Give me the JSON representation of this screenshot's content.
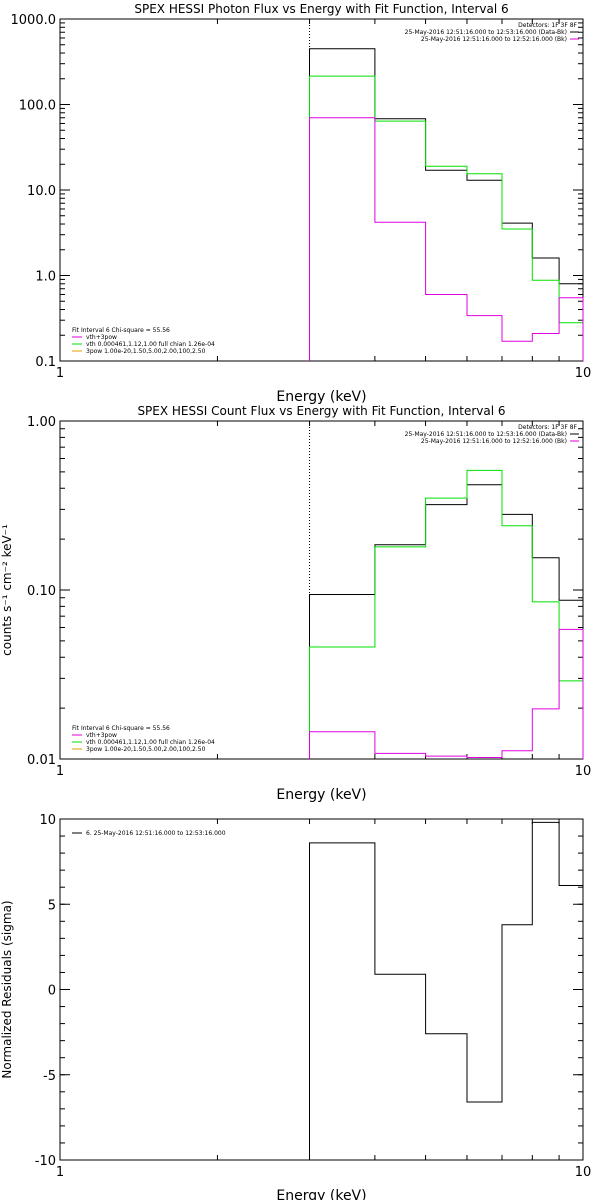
{
  "chart_data": [
    {
      "type": "line",
      "title": "SPEX HESSI Photon Flux vs Energy with Fit Function, Interval 6",
      "xlabel": "Energy (keV)",
      "ylabel": "",
      "xscale": "log",
      "yscale": "log",
      "xlim": [
        1,
        10
      ],
      "ylim": [
        0.1,
        1000
      ],
      "x_tick_labels": [
        "1",
        "10"
      ],
      "y_ticks": [
        0.1,
        1,
        10,
        100,
        1000
      ],
      "y_tick_labels": [
        "0.1",
        "1.0",
        "10.0",
        "100.0",
        "1000.0"
      ],
      "vline": 3,
      "edges": [
        3,
        4,
        5,
        6,
        7,
        8,
        9,
        10
      ],
      "series": [
        {
          "color": "#000000",
          "values": [
            450,
            68,
            17,
            13,
            4.1,
            1.6,
            0.8
          ]
        },
        {
          "color": "#00e000",
          "values": [
            215,
            64,
            19,
            15.5,
            3.5,
            0.88,
            0.28
          ]
        },
        {
          "color": "#e000e0",
          "values": [
            70,
            4.2,
            0.6,
            0.34,
            0.17,
            0.21,
            0.55
          ]
        }
      ],
      "header_right": [
        {
          "text": "Detectors: 1F 3F 8F",
          "line": false
        },
        {
          "text": "25-May-2016 12:51:16.000 to 12:53:16.000 (Data-Bk)",
          "line": true,
          "color": "#000000"
        },
        {
          "text": "25-May-2016 12:51:16.000 to 12:52:16.000 (Bk)",
          "line": true,
          "color": "#e000e0"
        }
      ],
      "legend_left": [
        {
          "text": "Fit Interval  6   Chi-square = 55.56",
          "line": false
        },
        {
          "text": "vth+3pow",
          "line": true,
          "color": "#e000e0"
        },
        {
          "text": "vth 0.000461,1.12,1.00   full chian 1.26e-04",
          "line": true,
          "color": "#00e000"
        },
        {
          "text": "3pow 1.00e-20,1.50,5.00,2.00,100,2.50",
          "line": true,
          "color": "#e0a000"
        }
      ]
    },
    {
      "type": "line",
      "title": "SPEX HESSI Count Flux vs Energy with Fit Function, Interval 6",
      "xlabel": "Energy (keV)",
      "ylabel": "counts s⁻¹ cm⁻² keV⁻¹",
      "xscale": "log",
      "yscale": "log",
      "xlim": [
        1,
        10
      ],
      "ylim": [
        0.01,
        1
      ],
      "x_tick_labels": [
        "1",
        "10"
      ],
      "y_ticks": [
        0.01,
        0.1,
        1
      ],
      "y_tick_labels": [
        "0.01",
        "0.10",
        "1.00"
      ],
      "vline": 3,
      "edges": [
        3,
        4,
        5,
        6,
        7,
        8,
        9,
        10
      ],
      "series": [
        {
          "color": "#000000",
          "values": [
            0.094,
            0.185,
            0.32,
            0.42,
            0.28,
            0.155,
            0.087
          ]
        },
        {
          "color": "#00e000",
          "values": [
            0.046,
            0.18,
            0.35,
            0.51,
            0.24,
            0.085,
            0.029
          ]
        },
        {
          "color": "#e000e0",
          "values": [
            0.0145,
            0.0108,
            0.0104,
            0.0102,
            0.0112,
            0.0198,
            0.0585
          ]
        }
      ],
      "header_right": [
        {
          "text": "Detectors: 1F 3F 8F",
          "line": false
        },
        {
          "text": "25-May-2016 12:51:16.000 to 12:53:16.000 (Data-Bk)",
          "line": true,
          "color": "#000000"
        },
        {
          "text": "25-May-2016 12:51:16.000 to 12:52:16.000 (Bk)",
          "line": true,
          "color": "#e000e0"
        }
      ],
      "legend_left": [
        {
          "text": "Fit Interval  6   Chi-square = 55.56",
          "line": false
        },
        {
          "text": "vth+3pow",
          "line": true,
          "color": "#e000e0"
        },
        {
          "text": "vth 0.000461,1.12,1.00   full chian 1.26e-04",
          "line": true,
          "color": "#00e000"
        },
        {
          "text": "3pow 1.00e-20,1.50,5.00,2.00,100,2.50",
          "line": true,
          "color": "#e0a000"
        }
      ]
    },
    {
      "type": "line",
      "title": "",
      "xlabel": "Energy (keV)",
      "ylabel": "Normalized Residuals (sigma)",
      "xscale": "log",
      "yscale": "linear",
      "xlim": [
        1,
        10
      ],
      "ylim": [
        -10,
        10
      ],
      "x_tick_labels": [
        "1",
        "10"
      ],
      "y_ticks": [
        -10,
        -5,
        0,
        5,
        10
      ],
      "y_tick_labels": [
        "-10",
        "-5",
        "0",
        "5",
        "10"
      ],
      "vline": null,
      "edges": [
        3,
        4,
        5,
        6,
        7,
        8,
        9,
        10
      ],
      "series": [
        {
          "color": "#000000",
          "values": [
            8.6,
            0.9,
            -2.6,
            -6.6,
            3.8,
            9.8,
            6.1
          ]
        }
      ],
      "header_right": [],
      "legend_left": [
        {
          "text": "6. 25-May-2016 12:51:16.000 to 12:53:16.000",
          "line": true,
          "color": "#000000"
        }
      ]
    }
  ]
}
